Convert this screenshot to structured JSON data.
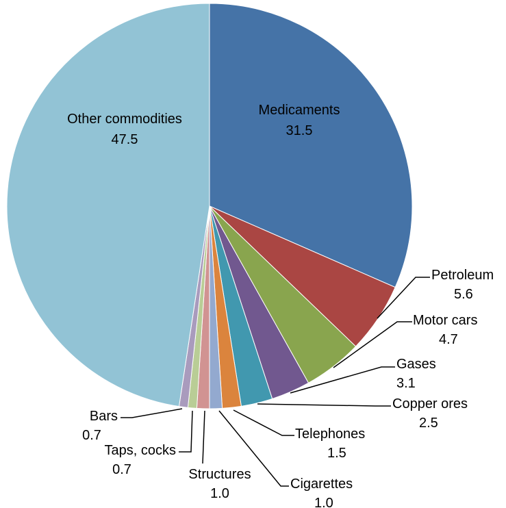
{
  "chart_data": {
    "type": "pie",
    "title": "",
    "legend": "none",
    "slices": [
      {
        "label": "Medicaments",
        "value": 31.5,
        "value_label": "31.5",
        "color": "#4573a7"
      },
      {
        "label": "Petroleum",
        "value": 5.6,
        "value_label": "5.6",
        "color": "#aa4643"
      },
      {
        "label": "Motor cars",
        "value": 4.7,
        "value_label": "4.7",
        "color": "#89a54e"
      },
      {
        "label": "Gases",
        "value": 3.1,
        "value_label": "3.1",
        "color": "#71588f"
      },
      {
        "label": "Copper ores",
        "value": 2.5,
        "value_label": "2.5",
        "color": "#4198af"
      },
      {
        "label": "Telephones",
        "value": 1.5,
        "value_label": "1.5",
        "color": "#db843d"
      },
      {
        "label": "Cigarettes",
        "value": 1.0,
        "value_label": "1.0",
        "color": "#93a9cf"
      },
      {
        "label": "Structures",
        "value": 1.0,
        "value_label": "1.0",
        "color": "#d19392"
      },
      {
        "label": "Taps, cocks",
        "value": 0.7,
        "value_label": "0.7",
        "color": "#b9cd96"
      },
      {
        "label": "Bars",
        "value": 0.7,
        "value_label": "0.7",
        "color": "#a99bbd"
      },
      {
        "label": "Other commodities",
        "value": 47.5,
        "value_label": "47.5",
        "color": "#92c3d5"
      }
    ]
  }
}
